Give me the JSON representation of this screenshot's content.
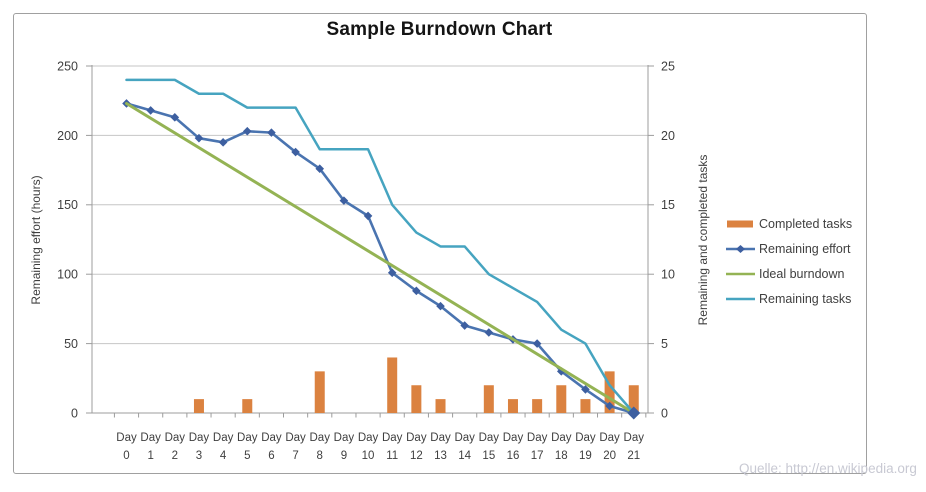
{
  "frame": {
    "source_note": "Quelle: http://en.wikipedia.org"
  },
  "chart_data": {
    "type": "combo",
    "title": "Sample Burndown Chart",
    "legend_position": "right",
    "grid": true,
    "x": {
      "category_prefix": "Day",
      "days": [
        0,
        1,
        2,
        3,
        4,
        5,
        6,
        7,
        8,
        9,
        10,
        11,
        12,
        13,
        14,
        15,
        16,
        17,
        18,
        19,
        20,
        21
      ]
    },
    "axes": {
      "left": {
        "title": "Remaining effort (hours)",
        "min": 0,
        "max": 250,
        "ticks": [
          0,
          50,
          100,
          150,
          200,
          250
        ]
      },
      "right": {
        "title": "Remaining and completed tasks",
        "min": 0,
        "max": 25,
        "ticks": [
          0,
          5,
          10,
          15,
          20,
          25
        ]
      }
    },
    "series": [
      {
        "name": "Completed tasks",
        "type": "bar",
        "axis": "right",
        "color": "#DB8240",
        "values": [
          0,
          0,
          0,
          1,
          0,
          1,
          0,
          0,
          3,
          0,
          0,
          4,
          2,
          1,
          0,
          2,
          1,
          1,
          2,
          1,
          3,
          2
        ]
      },
      {
        "name": "Remaining effort",
        "type": "line",
        "axis": "left",
        "color": "#4A74B0",
        "marker": "diamond",
        "marker_color": "#3D5FA0",
        "values": [
          223,
          218,
          213,
          198,
          195,
          203,
          202,
          188,
          176,
          153,
          142,
          101,
          88,
          77,
          63,
          58,
          53,
          50,
          30,
          17,
          5,
          0
        ]
      },
      {
        "name": "Ideal burndown",
        "type": "line",
        "axis": "left",
        "color": "#94B354",
        "values": [
          223,
          212.4,
          201.8,
          191.1,
          180.5,
          169.9,
          159.3,
          148.7,
          138,
          127.4,
          116.8,
          106.2,
          95.6,
          84.9,
          74.3,
          63.7,
          53.1,
          42.5,
          31.9,
          21.2,
          10.6,
          0
        ]
      },
      {
        "name": "Remaining tasks",
        "type": "line",
        "axis": "right",
        "color": "#46A4C0",
        "values": [
          24,
          24,
          24,
          23,
          23,
          22,
          22,
          22,
          19,
          19,
          19,
          15,
          13,
          12,
          12,
          10,
          9,
          8,
          6,
          5,
          2,
          0
        ]
      }
    ]
  }
}
